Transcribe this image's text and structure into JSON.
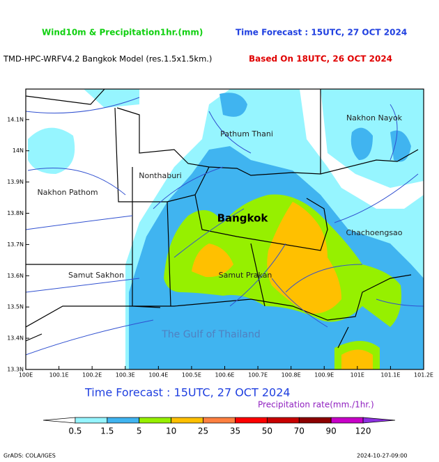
{
  "header": {
    "title": "Wind10m & Precipitation1hr.(mm)",
    "forecast": "Time Forecast : 15UTC, 27 OCT 2024",
    "model": "TMD-HPC-WRFV4.2 Bangkok Model (res.1.5x1.5km.)",
    "based_on": "Based On 18UTC, 26 OCT 2024"
  },
  "map": {
    "x_ticks": [
      "100E",
      "100.1E",
      "100.2E",
      "100.3E",
      "100.4E",
      "100.5E",
      "100.6E",
      "100.7E",
      "100.8E",
      "100.9E",
      "101E",
      "101.1E",
      "101.2E"
    ],
    "y_ticks": [
      "13.3N",
      "13.4N",
      "13.5N",
      "13.6N",
      "13.7N",
      "13.8N",
      "13.9N",
      "14N",
      "14.1N"
    ],
    "places": [
      "Pathum Thani",
      "Nakhon Nayok",
      "Nonthaburi",
      "Nakhon Pathom",
      "Bangkok",
      "Chachoengsao",
      "Samut Sakhon",
      "Samut Prakan",
      "The Gulf of Thailand"
    ]
  },
  "caption": {
    "forecast": "Time Forecast : 15UTC, 27 OCT 2024",
    "unit": "Precipitation rate(mm./1hr.)"
  },
  "colorbar": {
    "labels": [
      "0.5",
      "1.5",
      "5",
      "10",
      "25",
      "35",
      "50",
      "70",
      "90",
      "120"
    ],
    "colors": [
      "#ffffff",
      "#96f5ff",
      "#40b4f0",
      "#96f000",
      "#ffc000",
      "#ff8040",
      "#ff0000",
      "#c80000",
      "#8c0000",
      "#c800c8",
      "#8c30e0"
    ]
  },
  "footer": {
    "left": "GrADS: COLA/IGES",
    "right": "2024-10-27-09:00"
  }
}
